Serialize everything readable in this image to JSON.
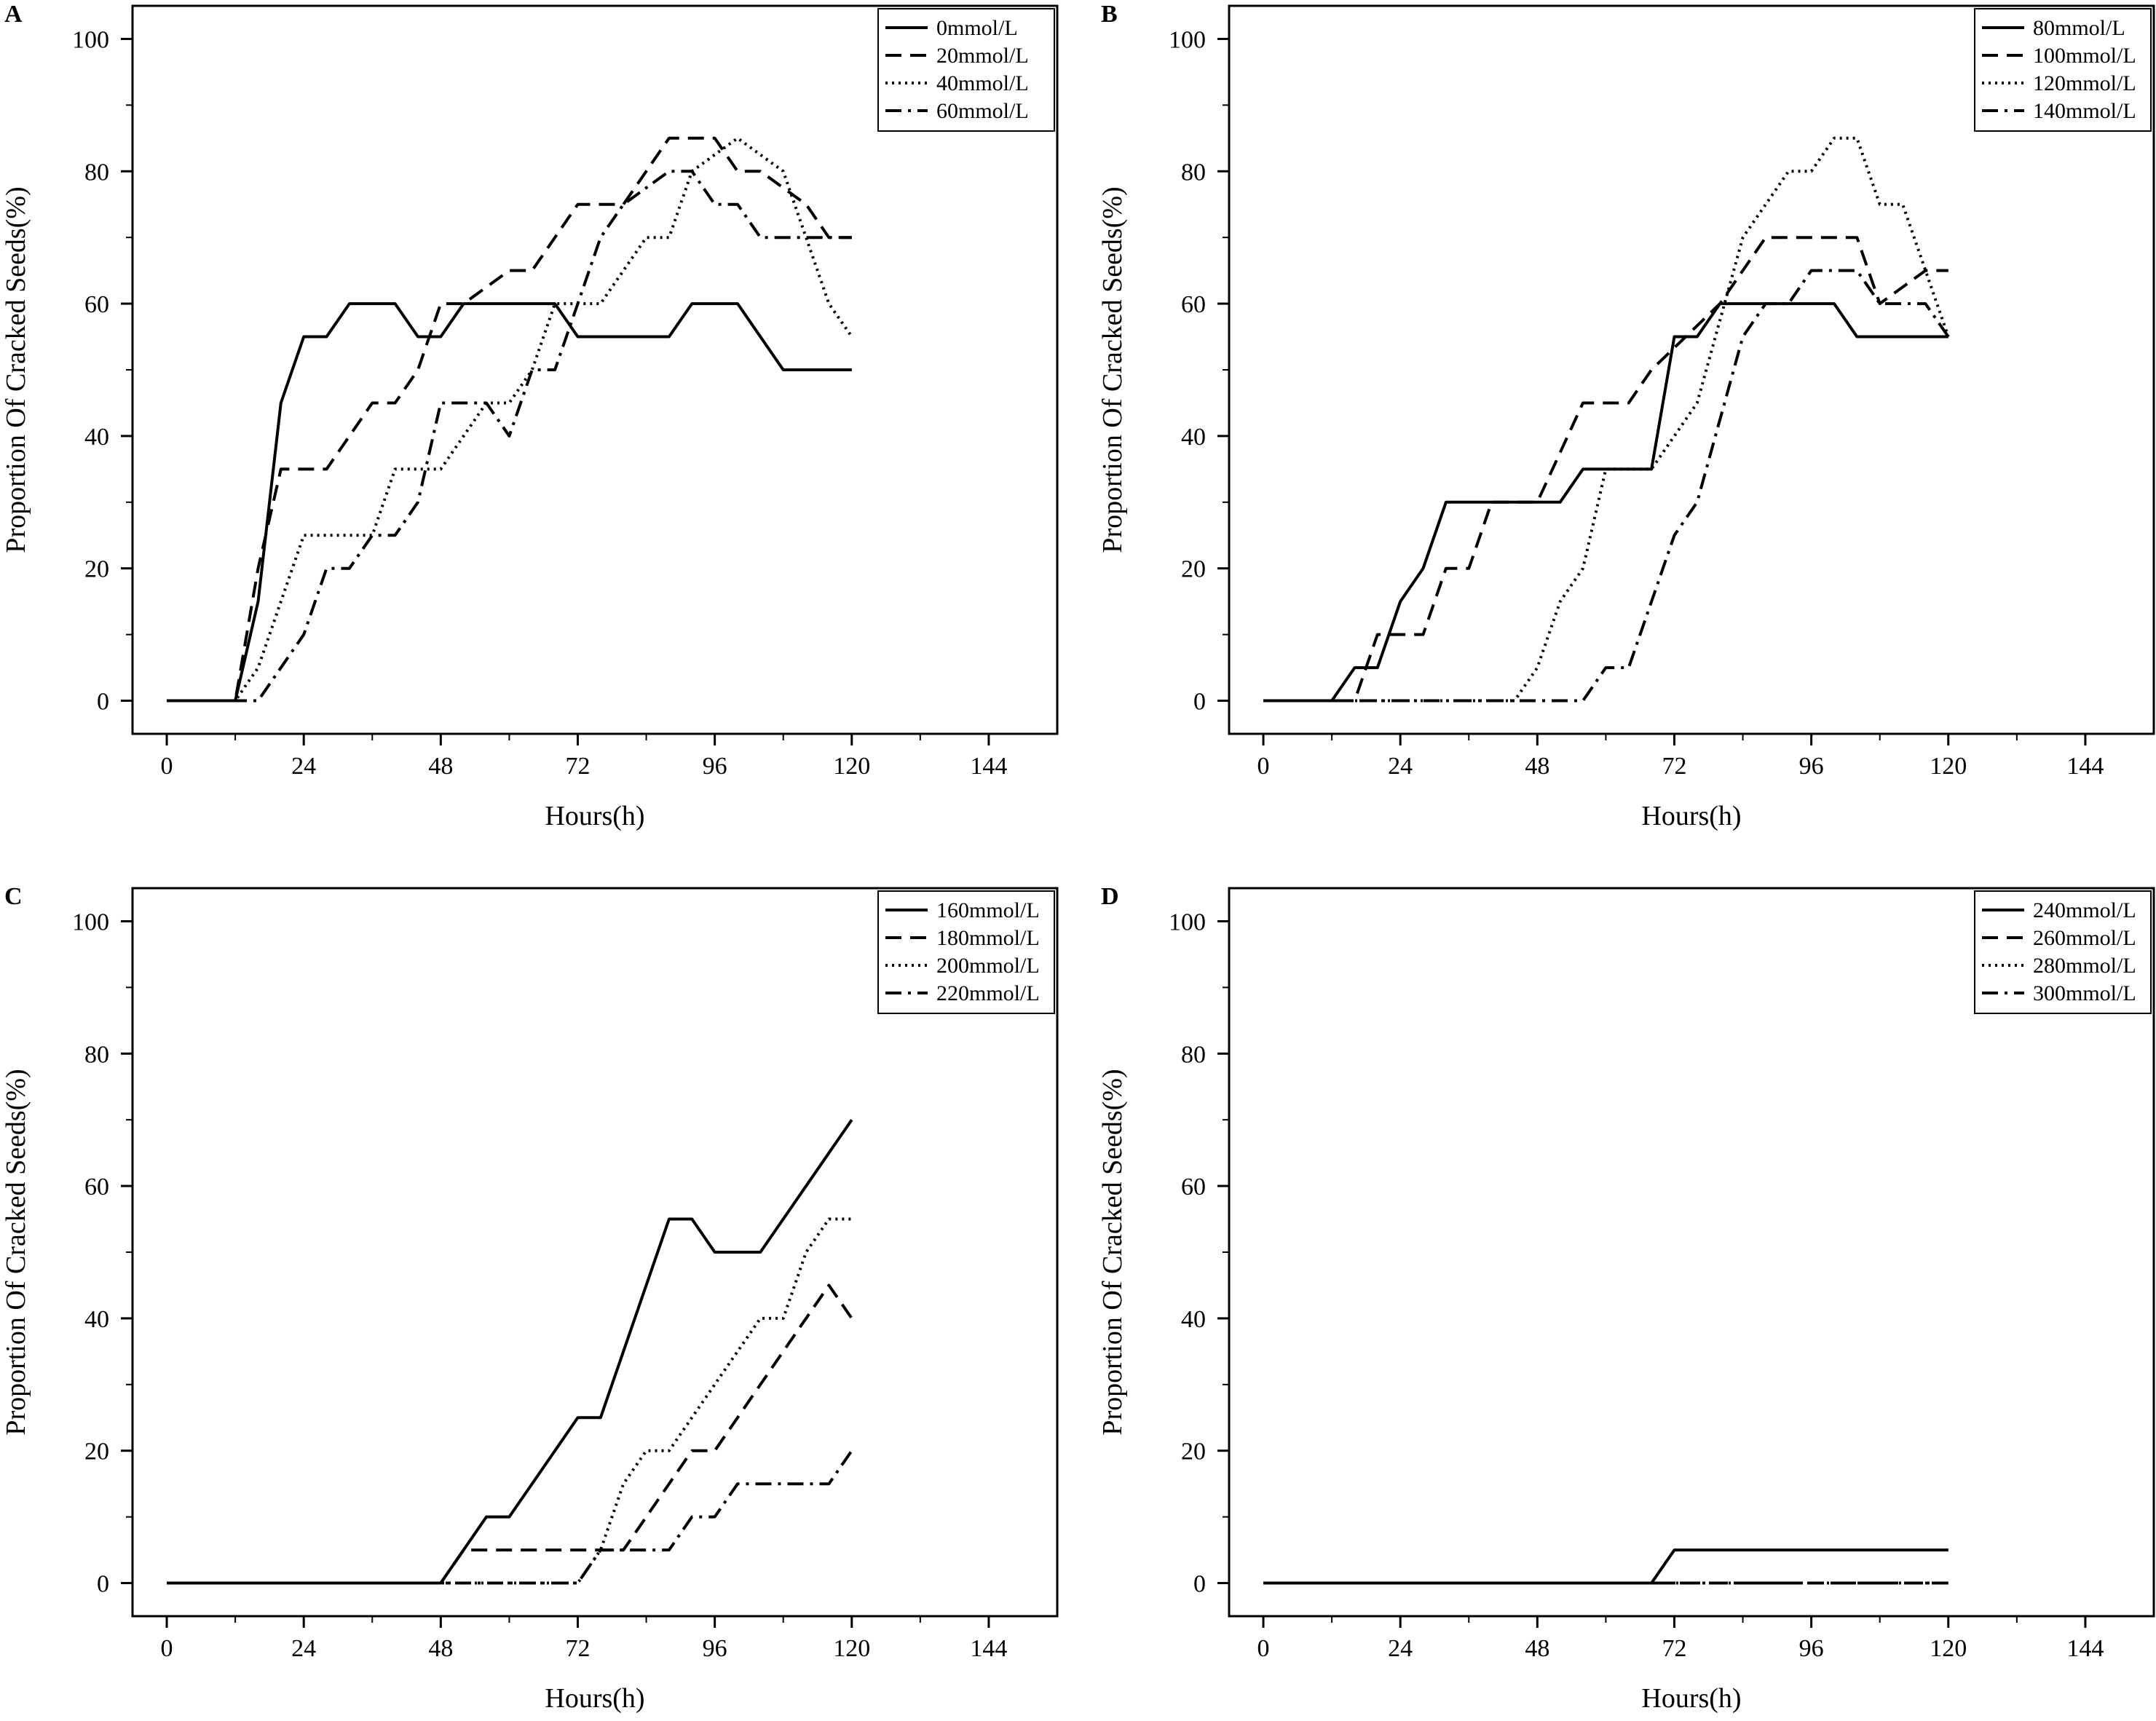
{
  "chart_data": [
    {
      "type": "line",
      "panel_label": "A",
      "xlabel": "Hours(h)",
      "ylabel": "Proportion Of Cracked Seeds(%)",
      "xlim": [
        -6,
        156
      ],
      "ylim": [
        -5,
        105
      ],
      "xticks": [
        0,
        24,
        48,
        72,
        96,
        120,
        144
      ],
      "yticks": [
        0,
        20,
        40,
        60,
        80,
        100
      ],
      "legend_position": "top-right",
      "series": [
        {
          "name": "0mmol/L",
          "style": "solid",
          "points": [
            [
              0,
              0
            ],
            [
              12,
              0
            ],
            [
              16,
              15
            ],
            [
              20,
              45
            ],
            [
              24,
              55
            ],
            [
              28,
              55
            ],
            [
              32,
              60
            ],
            [
              40,
              60
            ],
            [
              44,
              55
            ],
            [
              48,
              55
            ],
            [
              52,
              60
            ],
            [
              68,
              60
            ],
            [
              72,
              55
            ],
            [
              88,
              55
            ],
            [
              92,
              60
            ],
            [
              100,
              60
            ],
            [
              108,
              50
            ],
            [
              120,
              50
            ]
          ]
        },
        {
          "name": "20mmol/L",
          "style": "dashed",
          "points": [
            [
              0,
              0
            ],
            [
              12,
              0
            ],
            [
              16,
              20
            ],
            [
              20,
              35
            ],
            [
              28,
              35
            ],
            [
              36,
              45
            ],
            [
              40,
              45
            ],
            [
              44,
              50
            ],
            [
              48,
              60
            ],
            [
              52,
              60
            ],
            [
              60,
              65
            ],
            [
              64,
              65
            ],
            [
              72,
              75
            ],
            [
              80,
              75
            ],
            [
              88,
              85
            ],
            [
              96,
              85
            ],
            [
              100,
              80
            ],
            [
              104,
              80
            ],
            [
              112,
              75
            ],
            [
              116,
              70
            ],
            [
              120,
              70
            ]
          ]
        },
        {
          "name": "40mmol/L",
          "style": "dotted",
          "points": [
            [
              0,
              0
            ],
            [
              12,
              0
            ],
            [
              16,
              5
            ],
            [
              24,
              25
            ],
            [
              36,
              25
            ],
            [
              40,
              35
            ],
            [
              48,
              35
            ],
            [
              56,
              45
            ],
            [
              60,
              45
            ],
            [
              64,
              50
            ],
            [
              68,
              60
            ],
            [
              76,
              60
            ],
            [
              80,
              65
            ],
            [
              84,
              70
            ],
            [
              88,
              70
            ],
            [
              92,
              80
            ],
            [
              100,
              85
            ],
            [
              108,
              80
            ],
            [
              116,
              60
            ],
            [
              120,
              55
            ]
          ]
        },
        {
          "name": "60mmol/L",
          "style": "dashdot",
          "points": [
            [
              0,
              0
            ],
            [
              16,
              0
            ],
            [
              24,
              10
            ],
            [
              28,
              20
            ],
            [
              32,
              20
            ],
            [
              36,
              25
            ],
            [
              40,
              25
            ],
            [
              44,
              30
            ],
            [
              48,
              45
            ],
            [
              56,
              45
            ],
            [
              60,
              40
            ],
            [
              64,
              50
            ],
            [
              68,
              50
            ],
            [
              72,
              60
            ],
            [
              76,
              70
            ],
            [
              80,
              75
            ],
            [
              88,
              80
            ],
            [
              92,
              80
            ],
            [
              96,
              75
            ],
            [
              100,
              75
            ],
            [
              104,
              70
            ],
            [
              120,
              70
            ]
          ]
        }
      ]
    },
    {
      "type": "line",
      "panel_label": "B",
      "xlabel": "Hours(h)",
      "ylabel": "Proportion Of Cracked Seeds(%)",
      "xlim": [
        -6,
        156
      ],
      "ylim": [
        -5,
        105
      ],
      "xticks": [
        0,
        24,
        48,
        72,
        96,
        120,
        144
      ],
      "yticks": [
        0,
        20,
        40,
        60,
        80,
        100
      ],
      "legend_position": "top-right",
      "series": [
        {
          "name": "80mmol/L",
          "style": "solid",
          "points": [
            [
              0,
              0
            ],
            [
              12,
              0
            ],
            [
              16,
              5
            ],
            [
              20,
              5
            ],
            [
              24,
              15
            ],
            [
              28,
              20
            ],
            [
              32,
              30
            ],
            [
              52,
              30
            ],
            [
              56,
              35
            ],
            [
              68,
              35
            ],
            [
              72,
              55
            ],
            [
              76,
              55
            ],
            [
              80,
              60
            ],
            [
              100,
              60
            ],
            [
              104,
              55
            ],
            [
              120,
              55
            ]
          ]
        },
        {
          "name": "100mmol/L",
          "style": "dashed",
          "points": [
            [
              0,
              0
            ],
            [
              16,
              0
            ],
            [
              20,
              10
            ],
            [
              28,
              10
            ],
            [
              32,
              20
            ],
            [
              36,
              20
            ],
            [
              40,
              30
            ],
            [
              48,
              30
            ],
            [
              56,
              45
            ],
            [
              64,
              45
            ],
            [
              68,
              50
            ],
            [
              80,
              60
            ],
            [
              88,
              70
            ],
            [
              104,
              70
            ],
            [
              108,
              60
            ],
            [
              116,
              65
            ],
            [
              120,
              65
            ]
          ]
        },
        {
          "name": "120mmol/L",
          "style": "dotted",
          "points": [
            [
              0,
              0
            ],
            [
              44,
              0
            ],
            [
              48,
              5
            ],
            [
              52,
              15
            ],
            [
              56,
              20
            ],
            [
              60,
              35
            ],
            [
              68,
              35
            ],
            [
              72,
              40
            ],
            [
              76,
              45
            ],
            [
              84,
              70
            ],
            [
              92,
              80
            ],
            [
              96,
              80
            ],
            [
              100,
              85
            ],
            [
              104,
              85
            ],
            [
              108,
              75
            ],
            [
              112,
              75
            ],
            [
              120,
              55
            ]
          ]
        },
        {
          "name": "140mmol/L",
          "style": "dashdot",
          "points": [
            [
              0,
              0
            ],
            [
              56,
              0
            ],
            [
              60,
              5
            ],
            [
              64,
              5
            ],
            [
              72,
              25
            ],
            [
              76,
              30
            ],
            [
              84,
              55
            ],
            [
              88,
              60
            ],
            [
              92,
              60
            ],
            [
              96,
              65
            ],
            [
              104,
              65
            ],
            [
              108,
              60
            ],
            [
              116,
              60
            ],
            [
              120,
              55
            ]
          ]
        }
      ]
    },
    {
      "type": "line",
      "panel_label": "C",
      "xlabel": "Hours(h)",
      "ylabel": "Proportion Of Cracked Seeds(%)",
      "xlim": [
        -6,
        156
      ],
      "ylim": [
        -5,
        105
      ],
      "xticks": [
        0,
        24,
        48,
        72,
        96,
        120,
        144
      ],
      "yticks": [
        0,
        20,
        40,
        60,
        80,
        100
      ],
      "legend_position": "top-right",
      "series": [
        {
          "name": "160mmol/L",
          "style": "solid",
          "points": [
            [
              0,
              0
            ],
            [
              48,
              0
            ],
            [
              56,
              10
            ],
            [
              60,
              10
            ],
            [
              72,
              25
            ],
            [
              76,
              25
            ],
            [
              88,
              55
            ],
            [
              92,
              55
            ],
            [
              96,
              50
            ],
            [
              104,
              50
            ],
            [
              120,
              70
            ]
          ]
        },
        {
          "name": "180mmol/L",
          "style": "dashed",
          "points": [
            [
              0,
              0
            ],
            [
              48,
              0
            ],
            [
              52,
              5
            ],
            [
              80,
              5
            ],
            [
              92,
              20
            ],
            [
              96,
              20
            ],
            [
              116,
              45
            ],
            [
              120,
              40
            ]
          ]
        },
        {
          "name": "200mmol/L",
          "style": "dotted",
          "points": [
            [
              0,
              0
            ],
            [
              72,
              0
            ],
            [
              76,
              5
            ],
            [
              80,
              15
            ],
            [
              84,
              20
            ],
            [
              88,
              20
            ],
            [
              104,
              40
            ],
            [
              108,
              40
            ],
            [
              112,
              50
            ],
            [
              116,
              55
            ],
            [
              120,
              55
            ]
          ]
        },
        {
          "name": "220mmol/L",
          "style": "dashdot",
          "points": [
            [
              0,
              0
            ],
            [
              72,
              0
            ],
            [
              76,
              5
            ],
            [
              88,
              5
            ],
            [
              92,
              10
            ],
            [
              96,
              10
            ],
            [
              100,
              15
            ],
            [
              116,
              15
            ],
            [
              120,
              20
            ]
          ]
        }
      ]
    },
    {
      "type": "line",
      "panel_label": "D",
      "xlabel": "Hours(h)",
      "ylabel": "Proportion Of Cracked Seeds(%)",
      "xlim": [
        -6,
        156
      ],
      "ylim": [
        -5,
        105
      ],
      "xticks": [
        0,
        24,
        48,
        72,
        96,
        120,
        144
      ],
      "yticks": [
        0,
        20,
        40,
        60,
        80,
        100
      ],
      "legend_position": "top-right",
      "series": [
        {
          "name": "240mmol/L",
          "style": "solid",
          "points": [
            [
              0,
              0
            ],
            [
              68,
              0
            ],
            [
              72,
              5
            ],
            [
              120,
              5
            ]
          ]
        },
        {
          "name": "260mmol/L",
          "style": "dashed",
          "points": [
            [
              0,
              0
            ],
            [
              120,
              0
            ]
          ]
        },
        {
          "name": "280mmol/L",
          "style": "dotted",
          "points": [
            [
              0,
              0
            ],
            [
              120,
              0
            ]
          ]
        },
        {
          "name": "300mmol/L",
          "style": "dashdot",
          "points": [
            [
              0,
              0
            ],
            [
              120,
              0
            ]
          ]
        }
      ]
    }
  ]
}
